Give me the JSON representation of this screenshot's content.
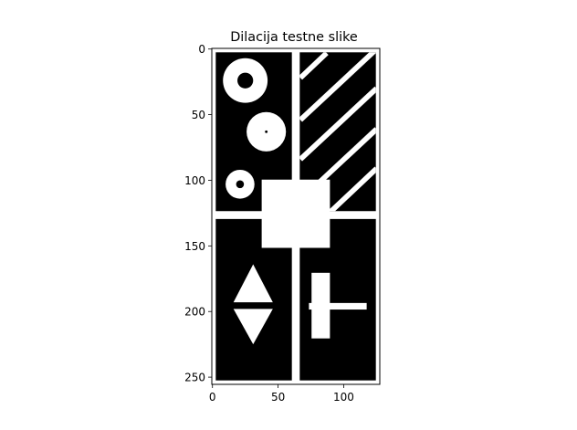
{
  "chart_data": {
    "type": "heatmap",
    "title": "Dilacija testne slike",
    "image": {
      "rows": 256,
      "cols": 128,
      "background": "#000000",
      "foreground": "#ffffff",
      "rects": [
        {
          "x": 0,
          "y": 0,
          "w": 128,
          "h": 3
        },
        {
          "x": 0,
          "y": 253,
          "w": 128,
          "h": 3
        },
        {
          "x": 0,
          "y": 0,
          "w": 3,
          "h": 256
        },
        {
          "x": 125,
          "y": 0,
          "w": 3,
          "h": 256
        },
        {
          "x": 61,
          "y": 0,
          "w": 6,
          "h": 256
        },
        {
          "x": 0,
          "y": 124,
          "w": 128,
          "h": 6
        },
        {
          "x": 38,
          "y": 100,
          "w": 52,
          "h": 52
        },
        {
          "x": 76,
          "y": 171,
          "w": 14,
          "h": 50
        },
        {
          "x": 74,
          "y": 194,
          "w": 44,
          "h": 5
        }
      ],
      "rings": [
        {
          "cx": 25,
          "cy": 24,
          "r_outer": 17,
          "r_inner": 6
        },
        {
          "cx": 41,
          "cy": 63,
          "r_outer": 15,
          "r_inner": 1
        },
        {
          "cx": 21,
          "cy": 103,
          "r_outer": 11,
          "r_inner": 3
        }
      ],
      "triangles": [
        {
          "points": [
            [
              31,
              164
            ],
            [
              46,
              193
            ],
            [
              16,
              193
            ]
          ]
        },
        {
          "points": [
            [
              16,
              198
            ],
            [
              46,
              198
            ],
            [
              31,
              225
            ]
          ]
        }
      ],
      "diagonal_stripes": {
        "region": {
          "x0": 67,
          "y0": 3,
          "x1": 125,
          "y1": 124
        },
        "width": 4,
        "lines": [
          {
            "from": [
              67,
              22
            ],
            "to": [
              87,
              3
            ]
          },
          {
            "from": [
              67,
              54
            ],
            "to": [
              125,
              0
            ]
          },
          {
            "from": [
              67,
              84
            ],
            "to": [
              125,
              30
            ]
          },
          {
            "from": [
              67,
              115
            ],
            "to": [
              125,
              61
            ]
          },
          {
            "from": [
              90,
              124
            ],
            "to": [
              125,
              91
            ]
          }
        ]
      }
    },
    "x_axis": {
      "ticks": [
        0,
        50,
        100
      ],
      "lim": [
        -0.5,
        127.5
      ]
    },
    "y_axis": {
      "ticks": [
        0,
        50,
        100,
        150,
        200,
        250
      ],
      "lim": [
        255.5,
        -0.5
      ],
      "inverted": true
    }
  }
}
